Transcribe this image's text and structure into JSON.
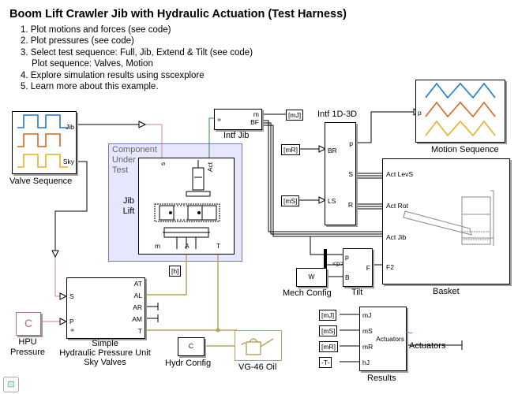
{
  "title": "Boom Lift Crawler Jib with Hydraulic Actuation (Test Harness)",
  "steps": [
    "1. Plot motions and forces (see code)",
    "2. Plot pressures (see code)",
    "3. Select test sequence: Full, Jib, Extend & Tilt (see code)",
    "Plot sequence: Valves, Motion",
    "4. Explore simulation results using sscexplore",
    "5. Learn more about this example."
  ],
  "blocks": {
    "valve_sequence": {
      "label": "Valve Sequence",
      "port_jib": "Jib",
      "port_sky": "Sky"
    },
    "cut": {
      "label1": "Component",
      "label2": "Under",
      "label3": "Test",
      "jib1": "Jib",
      "jib2": "Lift",
      "port_s": "s",
      "port_act": "Act",
      "port_m": "m",
      "port_a": "A",
      "port_t": "T"
    },
    "intf_jib": {
      "label": "Intf Jib",
      "port_m": "m",
      "port_bf": "BF"
    },
    "intf_1d3d": {
      "label": "Intf 1D-3D",
      "port_br": "BR",
      "port_ls": "LS",
      "port_p": "p",
      "port_s": "S",
      "port_r": "R"
    },
    "motion_sequence": {
      "label": "Motion Sequence",
      "port_p": "p"
    },
    "basket": {
      "label": "Basket",
      "act_levs": "Act LevS",
      "act_rot": "Act Rot",
      "act_jib": "Act Jib",
      "port_f2": "F2"
    },
    "tilt": {
      "label": "Tilt",
      "port_p": "p",
      "port_f": "F",
      "port_b": "B",
      "bus": "<p>"
    },
    "mech_config": {
      "label": "Mech Config",
      "glyph": "W"
    },
    "hpu_pressure": {
      "label1": "HPU",
      "label2": "Pressure",
      "glyph": "C"
    },
    "hpu": {
      "label1": "Simple",
      "label2": "Hydraulic Pressure Unit",
      "label3": "Sky Valves",
      "port_s": "S",
      "port_p": "P",
      "ports": [
        "AT",
        "AL",
        "AR",
        "AM",
        "T"
      ]
    },
    "hydr_config": {
      "label": "Hydr Config",
      "glyph": "C"
    },
    "oil": {
      "label": "VG-46 Oil"
    },
    "results": {
      "label": "Results",
      "ports": [
        "mJ",
        "mS",
        "mR",
        "hJ"
      ],
      "actuators": "Actuators"
    },
    "actuators_out": {
      "label": "Actuators"
    }
  },
  "tags": {
    "mJ": "[mJ]",
    "mR": "[mR]",
    "mS": "[mS]",
    "h": "[h]",
    "T": "-T-"
  },
  "colors": {
    "hydraulic": "#b8a35a",
    "signal": "#000000",
    "subsystem_fill": "#e6e6ff",
    "series_blue": "#1f77d0",
    "series_orange": "#e0621b",
    "series_yellow": "#e6b120",
    "pink": "#c98a8a",
    "green": "#2b8a3e"
  }
}
